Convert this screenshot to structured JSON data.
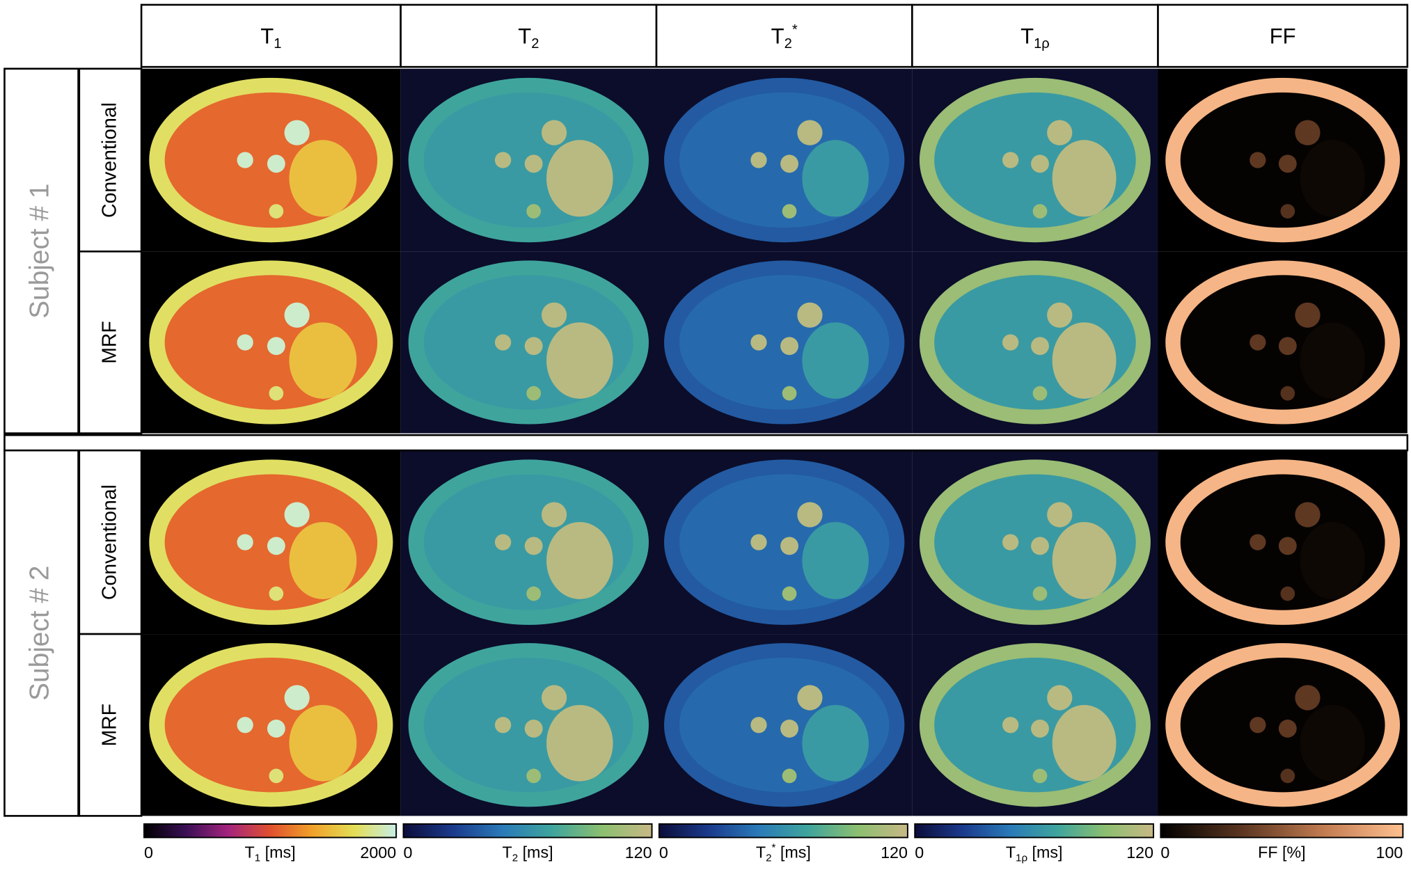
{
  "columns": [
    {
      "base": "T",
      "sub": "1"
    },
    {
      "base": "T",
      "sub": "2"
    },
    {
      "base": "T",
      "sub": "2",
      "sup": "*"
    },
    {
      "base": "T",
      "sub": "1ρ"
    },
    {
      "base": "FF"
    }
  ],
  "subjects": [
    {
      "label": "Subject # 1",
      "rows": [
        "Conventional",
        "MRF"
      ]
    },
    {
      "label": "Subject # 2",
      "rows": [
        "Conventional",
        "MRF"
      ]
    }
  ],
  "colorbars": [
    {
      "min": 0,
      "max": 2000,
      "label": {
        "base": "T",
        "sub": "1",
        "unit": "[ms]"
      },
      "colors": [
        "#000000",
        "#3a0f55",
        "#a3247e",
        "#e0502f",
        "#f0a12a",
        "#e3dd55",
        "#c8efe6"
      ]
    },
    {
      "min": 0,
      "max": 120,
      "label": {
        "base": "T",
        "sub": "2",
        "unit": "[ms]"
      },
      "colors": [
        "#0b0d3a",
        "#1b3a8c",
        "#2a7ab8",
        "#3fa59c",
        "#8cbf70",
        "#c8b886"
      ]
    },
    {
      "min": 0,
      "max": 120,
      "label": {
        "base": "T",
        "sub": "2",
        "sup": "*",
        "unit": "[ms]"
      },
      "colors": [
        "#0b0d3a",
        "#1b3a8c",
        "#2a7ab8",
        "#3fa59c",
        "#8cbf70",
        "#c8b886"
      ]
    },
    {
      "min": 0,
      "max": 120,
      "label": {
        "base": "T",
        "sub": "1ρ",
        "unit": "[ms]"
      },
      "colors": [
        "#0b0d3a",
        "#1b3a8c",
        "#2a7ab8",
        "#3fa59c",
        "#8cbf70",
        "#c8b886"
      ]
    },
    {
      "min": 0,
      "max": 100,
      "label": {
        "base": "FF",
        "unit": "[%]"
      },
      "colors": [
        "#000000",
        "#5a3520",
        "#c07a50",
        "#ffc090"
      ]
    }
  ]
}
